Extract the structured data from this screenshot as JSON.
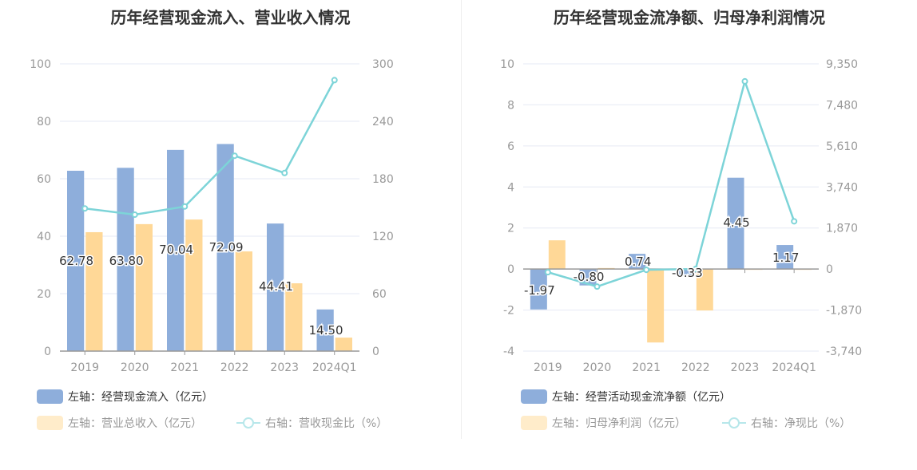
{
  "chart_data": [
    {
      "type": "bar+line",
      "title": "历年经营现金流入、营业收入情况",
      "categories": [
        "2019",
        "2020",
        "2021",
        "2022",
        "2023",
        "2024Q1"
      ],
      "left_axis": {
        "ylim": [
          0,
          100
        ],
        "ticks": [
          0,
          20,
          40,
          60,
          80,
          100
        ],
        "tick_labels": [
          "0",
          "20",
          "40",
          "60",
          "80",
          "100"
        ]
      },
      "right_axis": {
        "ylim": [
          0,
          300
        ],
        "ticks": [
          0,
          60,
          120,
          180,
          240,
          300
        ],
        "tick_labels": [
          "0",
          "60",
          "120",
          "180",
          "240",
          "300"
        ]
      },
      "grid": true,
      "legend_placement": "bottom-left",
      "series": [
        {
          "name": "左轴：经营现金流入（亿元）",
          "kind": "bar",
          "axis": "left",
          "color": "#8eaedb",
          "values": [
            62.78,
            63.8,
            70.04,
            72.09,
            44.41,
            14.5
          ],
          "labels": [
            "62.78",
            "63.80",
            "70.04",
            "72.09",
            "44.41",
            "14.50"
          ]
        },
        {
          "name": "左轴：营业总收入（亿元）",
          "kind": "bar",
          "axis": "left",
          "color": "#ffd897",
          "values": [
            41.4,
            44.2,
            45.8,
            34.7,
            23.6,
            4.7
          ]
        },
        {
          "name": "右轴：营收现金比（%）",
          "kind": "line",
          "axis": "right",
          "color": "#7dd4d8",
          "values": [
            149,
            142.5,
            151,
            204,
            186,
            283
          ]
        }
      ]
    },
    {
      "type": "bar+line",
      "title": "历年经营现金流净额、归母净利润情况",
      "categories": [
        "2019",
        "2020",
        "2021",
        "2022",
        "2023",
        "2024Q1"
      ],
      "left_axis": {
        "ylim": [
          -4,
          10
        ],
        "ticks": [
          -4,
          -2,
          0,
          2,
          4,
          6,
          8,
          10
        ],
        "tick_labels": [
          "-4",
          "-2",
          "0",
          "2",
          "4",
          "6",
          "8",
          "10"
        ]
      },
      "right_axis": {
        "ylim": [
          -3740,
          9350
        ],
        "ticks": [
          -3740,
          -1870,
          0,
          1870,
          3740,
          5610,
          7480,
          9350
        ],
        "tick_labels": [
          "-3,740",
          "-1,870",
          "0",
          "1,870",
          "3,740",
          "5,610",
          "7,480",
          "9,350"
        ]
      },
      "grid": true,
      "legend_placement": "bottom-left",
      "series": [
        {
          "name": "左轴：经营活动现金流净额（亿元）",
          "kind": "bar",
          "axis": "left",
          "color": "#8eaedb",
          "values": [
            -1.97,
            -0.8,
            0.74,
            -0.33,
            4.45,
            1.17
          ],
          "labels": [
            "-1.97",
            "-0.80",
            "0.74",
            "-0.33",
            "4.45",
            "1.17"
          ]
        },
        {
          "name": "左轴：归母净利润（亿元）",
          "kind": "bar",
          "axis": "left",
          "color": "#ffd897",
          "values": [
            1.4,
            0.05,
            -3.58,
            -2.02,
            -0.02,
            -0.02
          ]
        },
        {
          "name": "右轴：净现比（%）",
          "kind": "line",
          "axis": "right",
          "color": "#7dd4d8",
          "values": [
            -145,
            -800,
            -36,
            0,
            8553,
            2175
          ]
        }
      ]
    }
  ],
  "colors": {
    "text_active": "#333333",
    "text_muted": "#999999",
    "axis": "#999999",
    "grid": "#e6e9f4"
  }
}
